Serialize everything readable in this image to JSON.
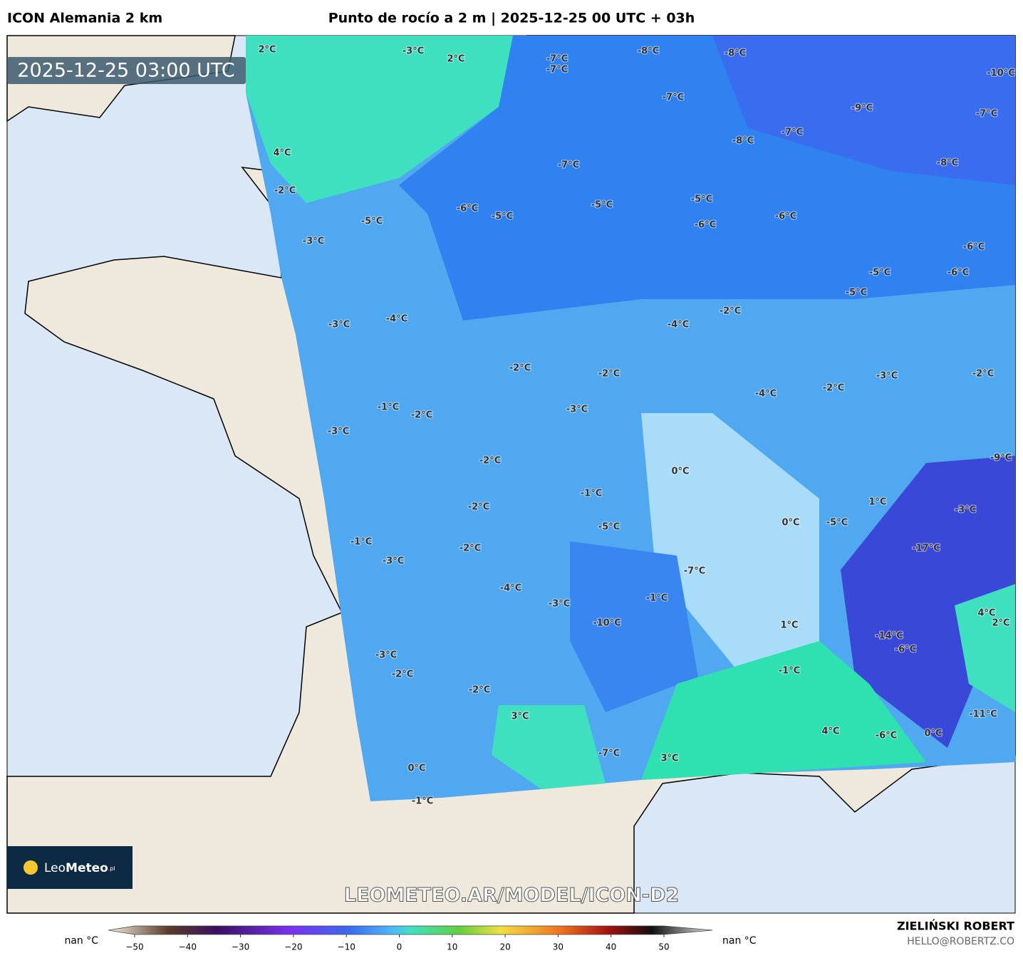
{
  "header": {
    "model": "ICON Alemania 2 km",
    "title": "Punto de rocío a 2 m | 2025-12-25 00 UTC + 03h"
  },
  "map": {
    "timestamp": "2025-12-25 03:00 UTC",
    "watermark": "LEOMETEO.AR/MODEL/ICON-D2",
    "labels": [
      "2°C",
      "-3°C",
      "2°C",
      "-7°C",
      "-7°C",
      "-8°C",
      "-8°C",
      "-10°C",
      "-7°C",
      "-9°C",
      "-7°C",
      "-7°C",
      "-8°C",
      "4°C",
      "-7°C",
      "-8°C",
      "-2°C",
      "-5°C",
      "-6°C",
      "-5°C",
      "-5°C",
      "-6°C",
      "-5°C",
      "-6°C",
      "-3°C",
      "-6°C",
      "-5°C",
      "-6°C",
      "-5°C",
      "-2°C",
      "-4°C",
      "-3°C",
      "-4°C",
      "-2°C",
      "-2°C",
      "-3°C",
      "-2°C",
      "-2°C",
      "-4°C",
      "-1°C",
      "-2°C",
      "-3°C",
      "-3°C",
      "-9°C",
      "-2°C",
      "0°C",
      "-1°C",
      "-2°C",
      "1°C",
      "-3°C",
      "-5°C",
      "0°C",
      "-5°C",
      "-1°C",
      "-2°C",
      "-17°C",
      "-3°C",
      "-7°C",
      "-4°C",
      "-1°C",
      "-3°C",
      "4°C",
      "-10°C",
      "1°C",
      "2°C",
      "-14°C",
      "-6°C",
      "-3°C",
      "-2°C",
      "-1°C",
      "-2°C",
      "3°C",
      "-11°C",
      "4°C",
      "-6°C",
      "0°C",
      "-7°C",
      "3°C",
      "0°C",
      "-1°C"
    ]
  },
  "logo": {
    "leo": "Leo",
    "meteo": "Meteo",
    "domain": ".pl"
  },
  "colorbar": {
    "under": "nan °C",
    "over": "nan °C",
    "ticks": [
      "−50",
      "−40",
      "−30",
      "−20",
      "−10",
      "0",
      "10",
      "20",
      "30",
      "40",
      "50"
    ]
  },
  "credits": {
    "author": "ZIELIŃSKI ROBERT",
    "email": "HELLO@ROBERTZ.CO"
  }
}
